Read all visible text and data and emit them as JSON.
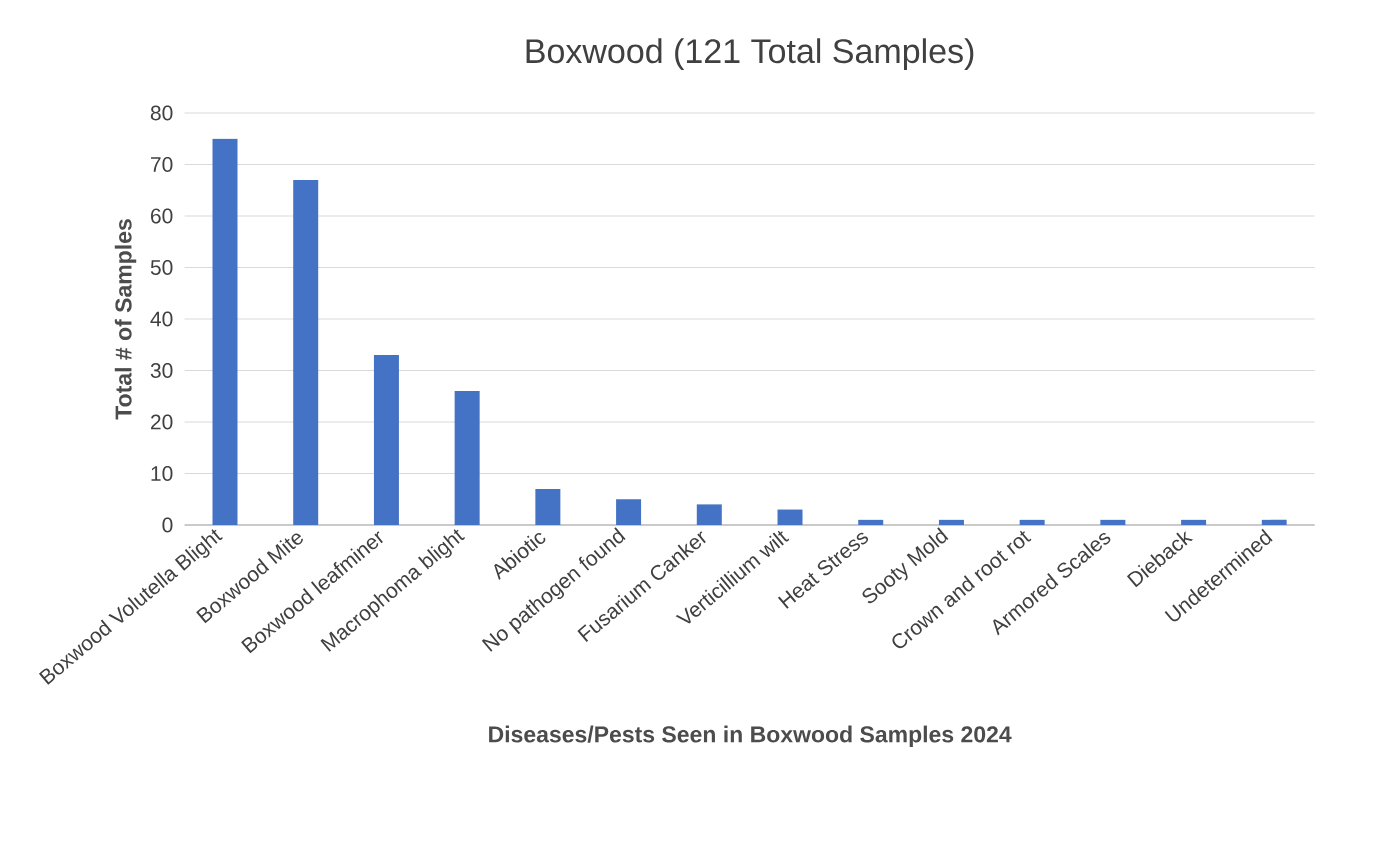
{
  "chart_data": {
    "type": "bar",
    "title": "Boxwood (121 Total Samples)",
    "xlabel": "Diseases/Pests Seen in Boxwood Samples 2024",
    "ylabel": "Total # of Samples",
    "categories": [
      "Boxwood Volutella Blight",
      "Boxwood Mite",
      "Boxwood leafminer",
      "Macrophoma blight",
      "Abiotic",
      "No pathogen found",
      "Fusarium Canker",
      "Verticillium wilt",
      "Heat Stress",
      "Sooty Mold",
      "Crown and root rot",
      "Armored Scales",
      "Dieback",
      "Undetermined"
    ],
    "values": [
      75,
      67,
      33,
      26,
      7,
      5,
      4,
      3,
      1,
      1,
      1,
      1,
      1,
      1
    ],
    "color": "#4472c4",
    "ylim": [
      0,
      80
    ],
    "yticks": [
      0,
      10,
      20,
      30,
      40,
      50,
      60,
      70,
      80
    ],
    "grid": "y"
  }
}
